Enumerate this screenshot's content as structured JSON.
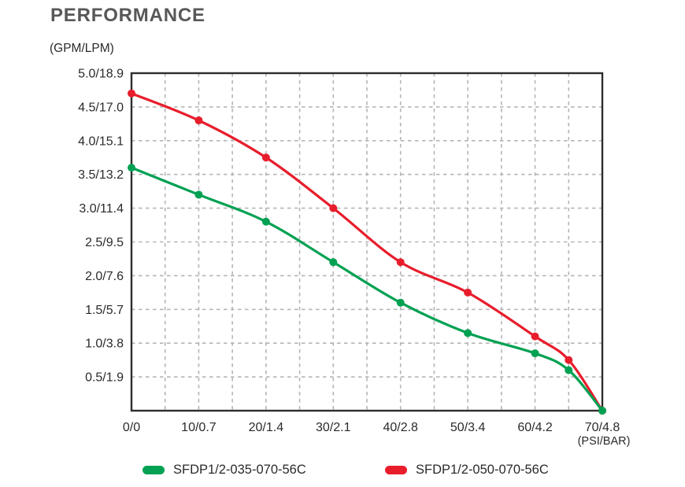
{
  "title": "PERFORMANCE",
  "chart_data": {
    "type": "line",
    "title": "PERFORMANCE",
    "y_unit_label": "(GPM/LPM)",
    "x_unit_label": "(PSI/BAR)",
    "xlim": [
      0,
      70
    ],
    "ylim": [
      0,
      5
    ],
    "grid": {
      "style": "dashed",
      "x_step": 5,
      "y_step": 0.5,
      "color": "#b5b5b5"
    },
    "x_ticks": [
      {
        "value": 0,
        "label": "0/0"
      },
      {
        "value": 10,
        "label": "10/0.7"
      },
      {
        "value": 20,
        "label": "20/1.4"
      },
      {
        "value": 30,
        "label": "30/2.1"
      },
      {
        "value": 40,
        "label": "40/2.8"
      },
      {
        "value": 50,
        "label": "50/3.4"
      },
      {
        "value": 60,
        "label": "60/4.2"
      },
      {
        "value": 70,
        "label": "70/4.8"
      }
    ],
    "y_ticks": [
      {
        "value": 5.0,
        "label": "5.0/18.9"
      },
      {
        "value": 4.5,
        "label": "4.5/17.0"
      },
      {
        "value": 4.0,
        "label": "4.0/15.1"
      },
      {
        "value": 3.5,
        "label": "3.5/13.2"
      },
      {
        "value": 3.0,
        "label": "3.0/11.4"
      },
      {
        "value": 2.5,
        "label": "2.5/9.5"
      },
      {
        "value": 2.0,
        "label": "2.0/7.6"
      },
      {
        "value": 1.5,
        "label": "1.5/5.7"
      },
      {
        "value": 1.0,
        "label": "1.0/3.8"
      },
      {
        "value": 0.5,
        "label": "0.5/1.9"
      }
    ],
    "series": [
      {
        "name": "SFDP1/2-035-070-56C",
        "color": "#00a152",
        "x": [
          0,
          10,
          20,
          30,
          40,
          50,
          60,
          65,
          70
        ],
        "y": [
          3.6,
          3.2,
          2.8,
          2.2,
          1.6,
          1.15,
          0.85,
          0.6,
          0
        ]
      },
      {
        "name": "SFDP1/2-050-070-56C",
        "color": "#e81d2c",
        "x": [
          0,
          10,
          20,
          30,
          40,
          50,
          60,
          65,
          70
        ],
        "y": [
          4.7,
          4.3,
          3.75,
          3.0,
          2.2,
          1.75,
          1.1,
          0.75,
          0
        ]
      }
    ],
    "legend_position": "bottom"
  },
  "colors": {
    "title": "#58585a",
    "axis_text": "#2b2a2a",
    "border": "#2e2d2c",
    "grid": "#b5b5b5",
    "green_series": "#00a152",
    "red_series": "#e81d2c"
  }
}
